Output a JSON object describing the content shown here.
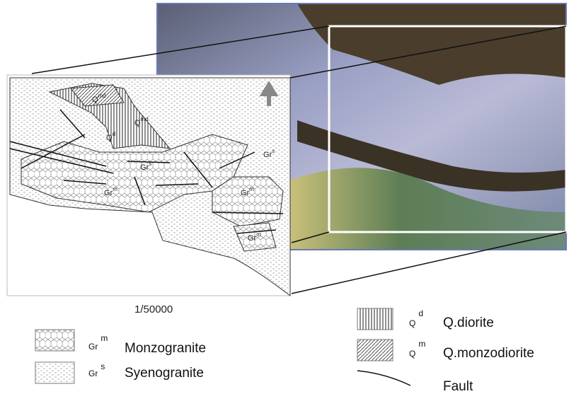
{
  "map": {
    "labels": [
      {
        "base": "Q",
        "sup": "md"
      },
      {
        "base": "Q",
        "sup": "md"
      },
      {
        "base": "Q",
        "sup": "d"
      },
      {
        "base": "Gr",
        "sup": "s"
      },
      {
        "base": "Gr",
        "sup": "s"
      },
      {
        "base": "Gr",
        "sup": "m"
      },
      {
        "base": "Gr",
        "sup": "m"
      },
      {
        "base": "Gr",
        "sup": "m"
      }
    ],
    "scale": "1/50000"
  },
  "legend": [
    {
      "base": "Gr",
      "sup": "m",
      "name": "Monzogranite"
    },
    {
      "base": "Gr",
      "sup": "s",
      "name": "Syenogranite"
    },
    {
      "base": "Q",
      "sup": "d",
      "name": "Q.diorite"
    },
    {
      "base": "Q",
      "sup": "m",
      "name": "Q.monzodiorite"
    },
    {
      "name": "Fault"
    }
  ]
}
